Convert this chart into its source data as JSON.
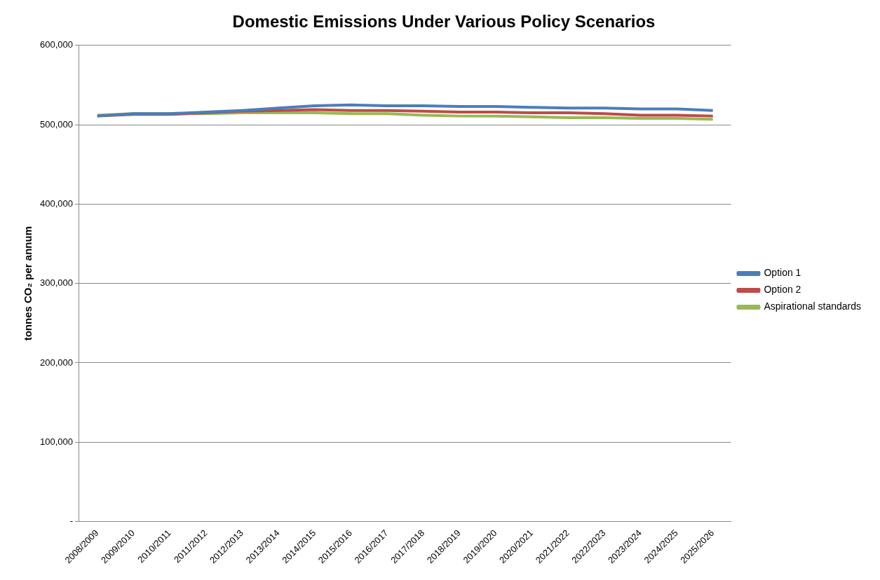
{
  "chart_data": {
    "type": "line",
    "title": "Domestic Emissions Under Various Policy Scenarios",
    "ylabel": "tonnes CO₂ per annum",
    "categories": [
      "2008/2009",
      "2009/2010",
      "2010/2011",
      "2011/2012",
      "2012/2013",
      "2013/2014",
      "2014/2015",
      "2015/2016",
      "2016/2017",
      "2017/2018",
      "2018/2019",
      "2019/2020",
      "2020/2021",
      "2021/2022",
      "2022/2023",
      "2023/2024",
      "2024/2025",
      "2025/2026"
    ],
    "series": [
      {
        "name": "Option 1",
        "color": "#4a7ebb",
        "values": [
          511000,
          514000,
          514000,
          516000,
          518000,
          521000,
          524000,
          525000,
          524000,
          524000,
          523000,
          523000,
          522000,
          521000,
          521000,
          520000,
          520000,
          518000
        ]
      },
      {
        "name": "Option 2",
        "color": "#be4b48",
        "values": [
          511000,
          513000,
          513000,
          515000,
          517000,
          518000,
          519000,
          518000,
          518000,
          517000,
          516000,
          516000,
          515000,
          515000,
          514000,
          512000,
          512000,
          511000
        ]
      },
      {
        "name": "Aspirational standards",
        "color": "#98b954",
        "values": [
          512000,
          514000,
          514000,
          514000,
          515000,
          515000,
          515000,
          514000,
          514000,
          512000,
          511000,
          511000,
          510000,
          509000,
          509000,
          508000,
          508000,
          507000
        ]
      }
    ],
    "ylim": [
      0,
      600000
    ],
    "yticks": [
      {
        "value": 0,
        "label": "-"
      },
      {
        "value": 100000,
        "label": "100,000"
      },
      {
        "value": 200000,
        "label": "200,000"
      },
      {
        "value": 300000,
        "label": "300,000"
      },
      {
        "value": 400000,
        "label": "400,000"
      },
      {
        "value": 500000,
        "label": "500,000"
      },
      {
        "value": 600000,
        "label": "600,000"
      }
    ],
    "grid": "y",
    "legend": "right",
    "marker": "none",
    "line_style": "solid"
  }
}
